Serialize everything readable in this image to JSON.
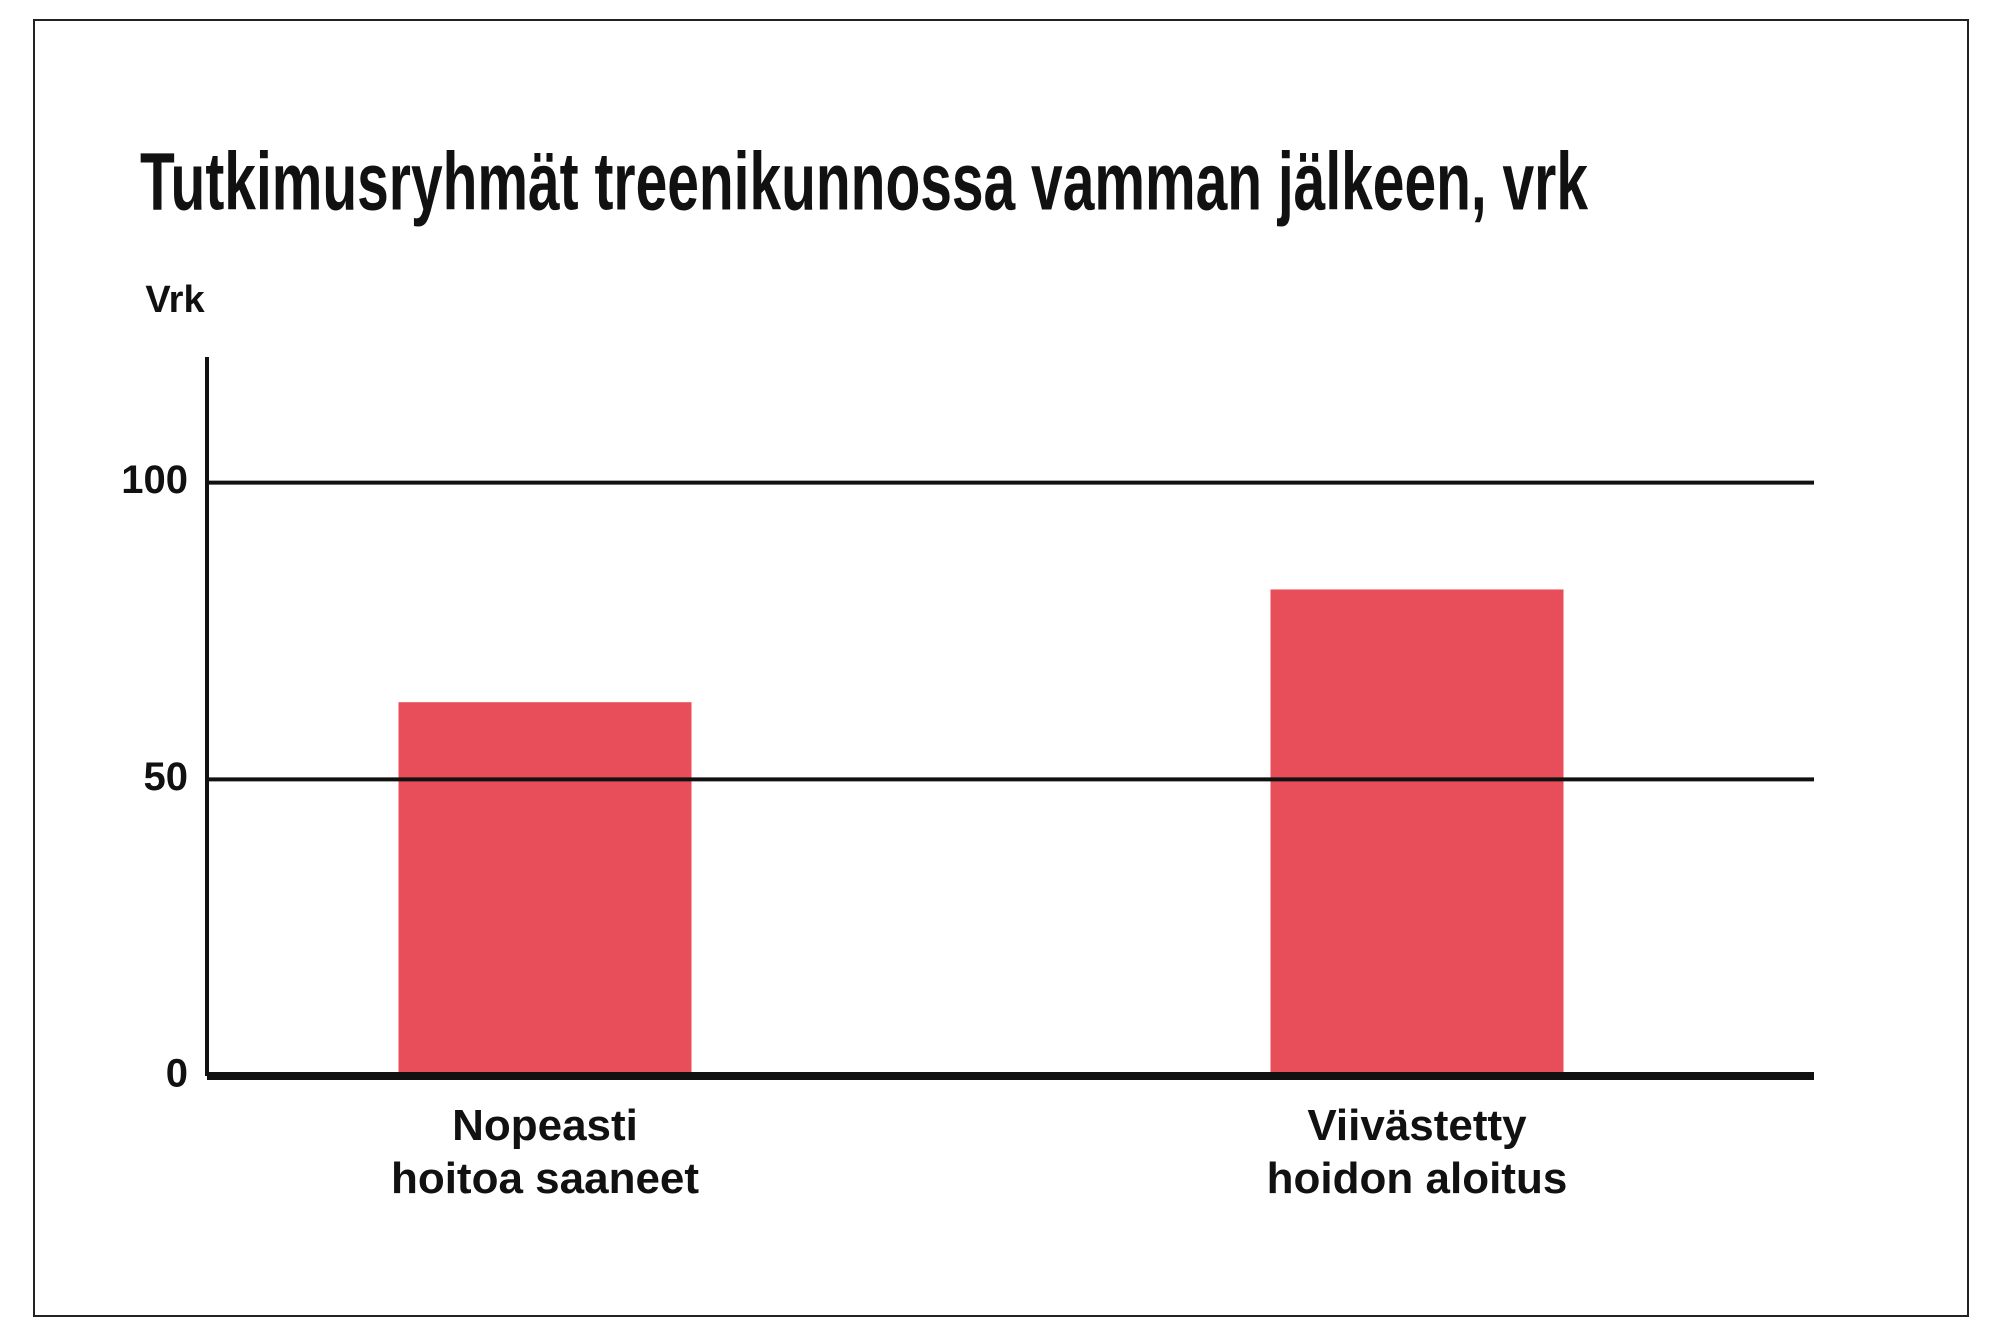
{
  "chart_data": {
    "type": "bar",
    "title": "Tutkimusryhmät treenikunnossa vamman jälkeen, vrk",
    "y_label": "Vrk",
    "categories": [
      "Nopeasti\nhoitoa saaneet",
      "Viivästetty\nhoidon aloitus"
    ],
    "values": [
      63,
      82
    ],
    "color": "#e84e5a",
    "ylim": [
      0,
      120
    ],
    "yticks": [
      0,
      50,
      100
    ],
    "grid": true
  }
}
